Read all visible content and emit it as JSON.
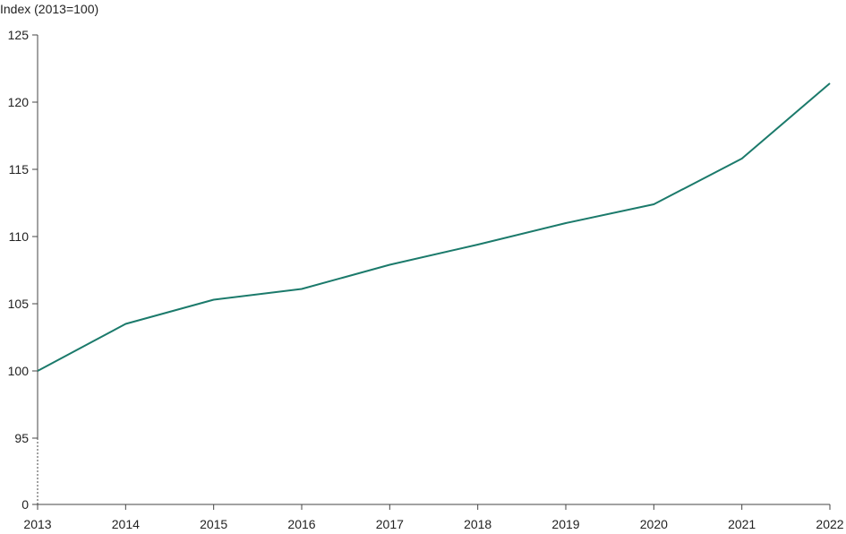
{
  "chart_data": {
    "type": "line",
    "title": "",
    "xlabel": "",
    "ylabel": "Index (2013=100)",
    "x": [
      2013,
      2014,
      2015,
      2016,
      2017,
      2018,
      2019,
      2020,
      2021,
      2022
    ],
    "series": [
      {
        "values": [
          100.0,
          103.5,
          105.3,
          106.1,
          107.9,
          109.4,
          111.0,
          112.4,
          115.8,
          121.4
        ],
        "color": "#1b7a6b"
      }
    ],
    "y_ticks": [
      0,
      95,
      100,
      105,
      110,
      115,
      120,
      125
    ],
    "y_axis_break": {
      "from": 0,
      "to": 95
    },
    "ylim": [
      95,
      125
    ],
    "grid": false,
    "legend": "none"
  }
}
